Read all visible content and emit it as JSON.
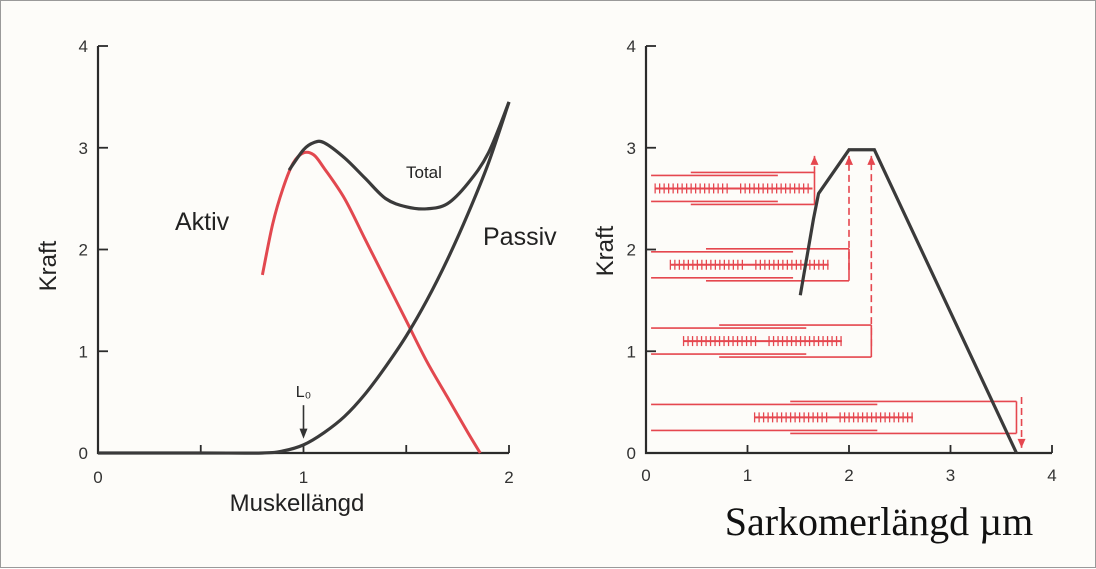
{
  "colors": {
    "black_curve": "#3a3a3a",
    "red_curve": "#e2484f",
    "sarcomere_red": "#e5474f"
  },
  "chart_data": [
    {
      "type": "line",
      "xlabel": "Muskellängd",
      "ylabel": "Kraft",
      "xlim": [
        0,
        2
      ],
      "ylim": [
        0,
        4
      ],
      "x_ticks": [
        "0",
        "1",
        "2"
      ],
      "y_ticks": [
        "0",
        "1",
        "2",
        "3",
        "4"
      ],
      "annotation": "L₀",
      "annotation_x": 1.0,
      "series": [
        {
          "name": "Aktiv",
          "color": "#e2484f",
          "x": [
            0.8,
            0.85,
            0.9,
            0.95,
            1.0,
            1.05,
            1.1,
            1.2,
            1.3,
            1.4,
            1.5,
            1.6,
            1.7,
            1.8,
            1.86
          ],
          "y": [
            1.75,
            2.25,
            2.6,
            2.85,
            2.95,
            2.93,
            2.8,
            2.5,
            2.1,
            1.7,
            1.3,
            0.9,
            0.55,
            0.2,
            0.0
          ]
        },
        {
          "name": "Passiv",
          "color": "#3a3a3a",
          "x": [
            0.0,
            0.5,
            0.8,
            0.9,
            1.0,
            1.1,
            1.2,
            1.3,
            1.4,
            1.5,
            1.6,
            1.7,
            1.8,
            1.9,
            2.0
          ],
          "y": [
            0.0,
            0.0,
            0.0,
            0.02,
            0.08,
            0.2,
            0.36,
            0.58,
            0.85,
            1.15,
            1.5,
            1.9,
            2.35,
            2.85,
            3.45
          ]
        },
        {
          "name": "Total",
          "color": "#3a3a3a",
          "x": [
            0.93,
            1.0,
            1.05,
            1.1,
            1.2,
            1.3,
            1.4,
            1.5,
            1.6,
            1.7,
            1.8,
            1.9,
            2.0
          ],
          "y": [
            2.78,
            2.98,
            3.05,
            3.05,
            2.9,
            2.7,
            2.5,
            2.42,
            2.4,
            2.45,
            2.65,
            2.95,
            3.45
          ]
        }
      ]
    },
    {
      "type": "line",
      "xlabel": "Sarkomerlängd µm",
      "ylabel": "Kraft",
      "xlim": [
        0,
        4
      ],
      "ylim": [
        0,
        4
      ],
      "x_ticks": [
        "0",
        "1",
        "2",
        "3",
        "4"
      ],
      "y_ticks": [
        "0",
        "1",
        "2",
        "3",
        "4"
      ],
      "series": [
        {
          "name": "",
          "color": "#3a3a3a",
          "x": [
            1.52,
            1.65,
            1.7,
            2.0,
            2.25,
            3.65
          ],
          "y": [
            1.55,
            2.3,
            2.55,
            2.98,
            2.98,
            0.0
          ]
        }
      ],
      "sarcomeres": [
        {
          "y": 2.6,
          "left": 0.05,
          "right": 1.66,
          "z_center": 0.87,
          "myo_half": 0.78
        },
        {
          "y": 1.85,
          "left": 0.05,
          "right": 2.0,
          "z_center": 1.02,
          "myo_half": 0.78
        },
        {
          "y": 1.1,
          "left": 0.05,
          "right": 2.22,
          "z_center": 1.15,
          "myo_half": 0.78
        },
        {
          "y": 0.35,
          "left": 0.05,
          "right": 3.65,
          "z_center": 1.85,
          "myo_half": 0.78
        }
      ]
    }
  ]
}
